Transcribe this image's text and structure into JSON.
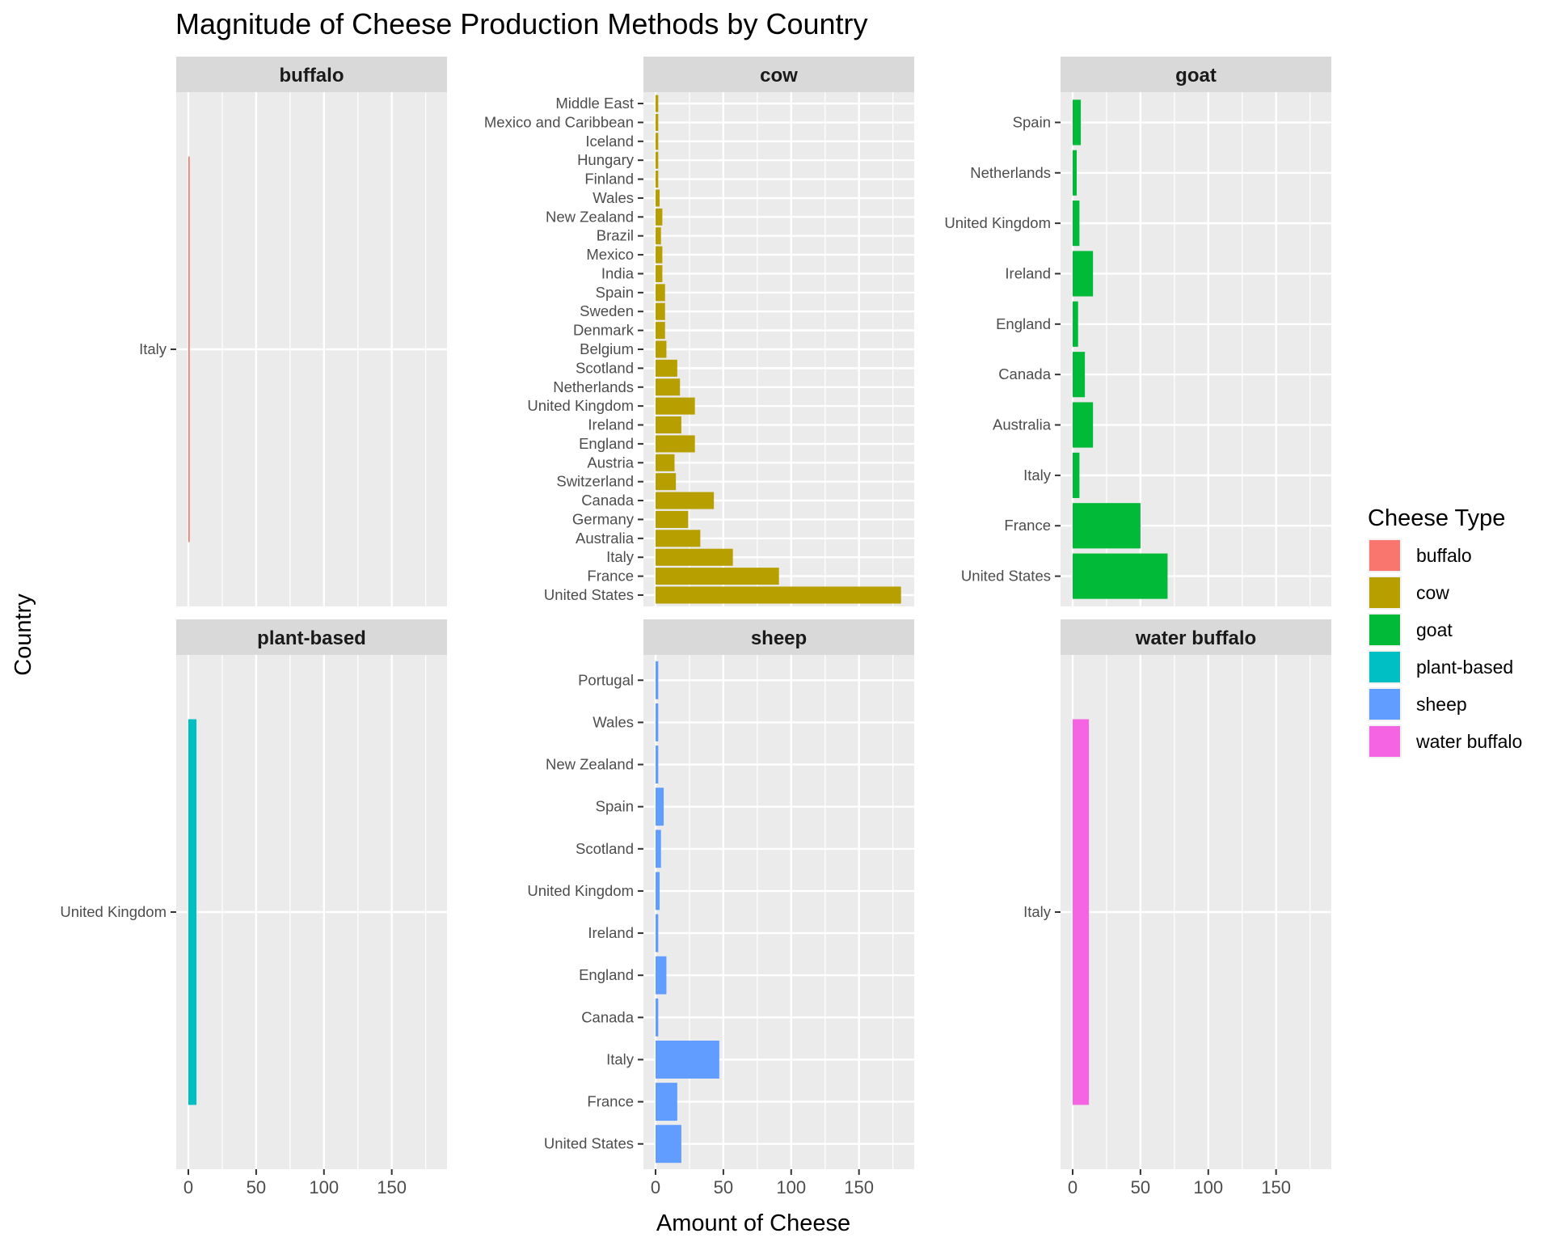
{
  "title": "Magnitude of Cheese Production Methods by Country",
  "xlabel": "Amount of Cheese",
  "ylabel": "Country",
  "legend": {
    "title": "Cheese Type",
    "placement": "right",
    "items": [
      {
        "label": "buffalo",
        "color": "#F8766D"
      },
      {
        "label": "cow",
        "color": "#B79F00"
      },
      {
        "label": "goat",
        "color": "#00BA38"
      },
      {
        "label": "plant-based",
        "color": "#00BFC4"
      },
      {
        "label": "sheep",
        "color": "#619CFF"
      },
      {
        "label": "water buffalo",
        "color": "#F564E3"
      }
    ]
  },
  "chart_data": {
    "type": "bar",
    "orientation": "horizontal",
    "facet_by": "Cheese Type",
    "xlim": [
      0,
      180
    ],
    "x_ticks": [
      0,
      50,
      100,
      150
    ],
    "grid": true,
    "panels": [
      {
        "title": "buffalo",
        "color": "#F8766D",
        "categories": [
          "Italy"
        ],
        "values": [
          1
        ]
      },
      {
        "title": "cow",
        "color": "#B79F00",
        "categories": [
          "United States",
          "France",
          "Italy",
          "Australia",
          "Germany",
          "Canada",
          "Switzerland",
          "Austria",
          "England",
          "Ireland",
          "United Kingdom",
          "Netherlands",
          "Scotland",
          "Belgium",
          "Denmark",
          "Sweden",
          "Spain",
          "India",
          "Mexico",
          "Brazil",
          "New Zealand",
          "Wales",
          "Finland",
          "Hungary",
          "Iceland",
          "Mexico and Caribbean",
          "Middle East"
        ],
        "values": [
          181,
          91,
          57,
          33,
          24,
          43,
          15,
          14,
          29,
          19,
          29,
          18,
          16,
          8,
          7,
          7,
          7,
          5,
          5,
          4,
          5,
          3,
          2,
          2,
          2,
          2,
          2
        ]
      },
      {
        "title": "goat",
        "color": "#00BA38",
        "categories": [
          "United States",
          "France",
          "Italy",
          "Australia",
          "Canada",
          "England",
          "Ireland",
          "United Kingdom",
          "Netherlands",
          "Spain"
        ],
        "values": [
          70,
          50,
          5,
          15,
          9,
          4,
          15,
          5,
          3,
          6
        ]
      },
      {
        "title": "plant-based",
        "color": "#00BFC4",
        "categories": [
          "United Kingdom"
        ],
        "values": [
          6
        ]
      },
      {
        "title": "sheep",
        "color": "#619CFF",
        "categories": [
          "United States",
          "France",
          "Italy",
          "Canada",
          "England",
          "Ireland",
          "United Kingdom",
          "Scotland",
          "Spain",
          "New Zealand",
          "Wales",
          "Portugal"
        ],
        "values": [
          19,
          16,
          47,
          2,
          8,
          2,
          3,
          4,
          6,
          2,
          2,
          2
        ]
      },
      {
        "title": "water buffalo",
        "color": "#F564E3",
        "categories": [
          "Italy"
        ],
        "values": [
          12
        ]
      }
    ]
  }
}
